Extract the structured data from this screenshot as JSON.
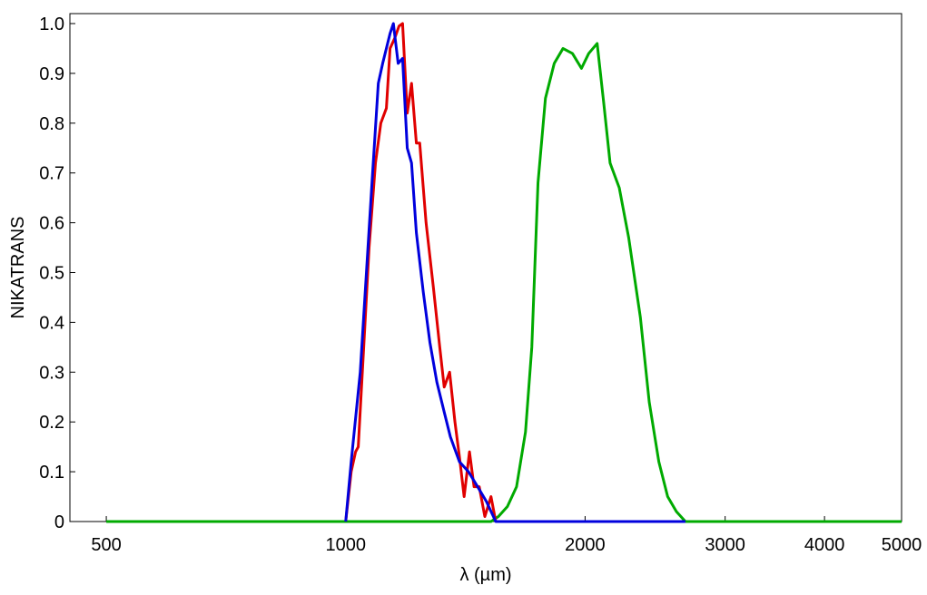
{
  "chart_data": {
    "type": "line",
    "xlabel": "λ (µm)",
    "ylabel": "NIKATRANS",
    "xscale": "log",
    "xlim": [
      450,
      5000
    ],
    "xticks": [
      500,
      1000,
      2000,
      3000,
      4000,
      5000
    ],
    "ylim": [
      0,
      1.02
    ],
    "yticks": [
      0,
      0.1,
      0.2,
      0.3,
      0.4,
      0.5,
      0.6,
      0.7,
      0.8,
      0.9,
      {
        "value": 1,
        "label": "1.0"
      }
    ],
    "series": [
      {
        "color": "#00aa00",
        "x": [
          500,
          1523,
          1556,
          1597,
          1640,
          1683,
          1714,
          1745,
          1783,
          1829,
          1876,
          1928,
          1979,
          2021,
          2071,
          2111,
          2150,
          2208,
          2269,
          2347,
          2408,
          2476,
          2540,
          2605,
          2674,
          5000
        ],
        "values": [
          0,
          0,
          0.01,
          0.03,
          0.07,
          0.18,
          0.35,
          0.68,
          0.85,
          0.92,
          0.95,
          0.94,
          0.91,
          0.94,
          0.96,
          0.84,
          0.72,
          0.67,
          0.57,
          0.41,
          0.24,
          0.12,
          0.05,
          0.02,
          0,
          0
        ]
      },
      {
        "color": "#e00000",
        "x": [
          1000,
          1016,
          1029,
          1037,
          1056,
          1070,
          1090,
          1107,
          1125,
          1137,
          1152,
          1167,
          1179,
          1195,
          1210,
          1227,
          1239,
          1262,
          1289,
          1313,
          1330,
          1351,
          1372,
          1390,
          1409,
          1431,
          1450,
          1472,
          1496,
          1523,
          1544
        ],
        "values": [
          0,
          0.1,
          0.14,
          0.15,
          0.38,
          0.55,
          0.72,
          0.8,
          0.83,
          0.95,
          0.97,
          0.995,
          1.0,
          0.82,
          0.88,
          0.76,
          0.76,
          0.6,
          0.47,
          0.35,
          0.27,
          0.3,
          0.2,
          0.13,
          0.05,
          0.14,
          0.07,
          0.07,
          0.01,
          0.05,
          0
        ]
      },
      {
        "color": "#0000dd",
        "x": [
          1000,
          1016,
          1043,
          1079,
          1099,
          1113,
          1137,
          1148,
          1164,
          1179,
          1195,
          1210,
          1227,
          1252,
          1276,
          1302,
          1330,
          1354,
          1390,
          1427,
          1465,
          1503,
          1544,
          2674
        ],
        "values": [
          0,
          0.12,
          0.3,
          0.68,
          0.88,
          0.92,
          0.98,
          1.0,
          0.92,
          0.93,
          0.75,
          0.72,
          0.58,
          0.46,
          0.36,
          0.28,
          0.22,
          0.17,
          0.12,
          0.1,
          0.07,
          0.04,
          0,
          0
        ]
      }
    ]
  }
}
